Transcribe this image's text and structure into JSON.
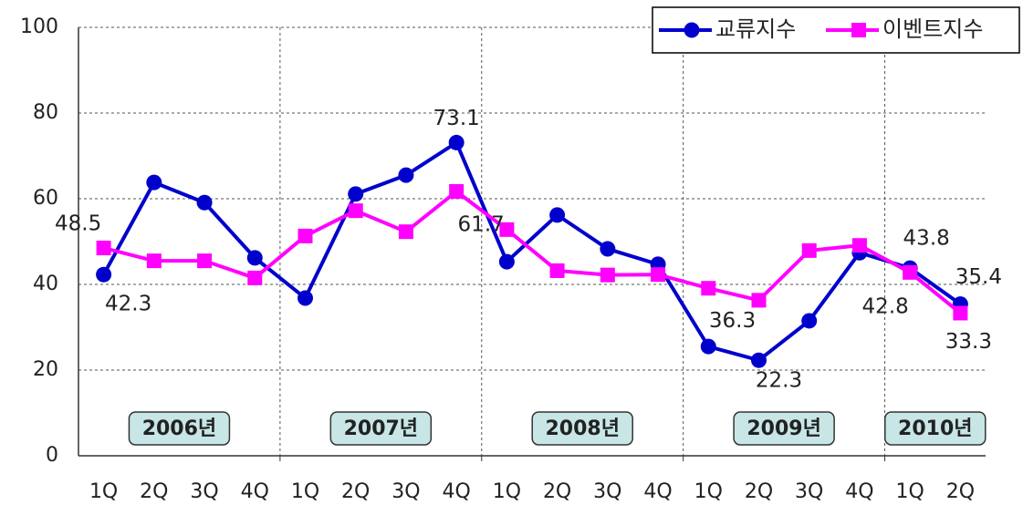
{
  "chart_data": {
    "type": "line",
    "categories": [
      "1Q",
      "2Q",
      "3Q",
      "4Q",
      "1Q",
      "2Q",
      "3Q",
      "4Q",
      "1Q",
      "2Q",
      "3Q",
      "4Q",
      "1Q",
      "2Q",
      "3Q",
      "4Q",
      "1Q",
      "2Q"
    ],
    "group_labels": [
      "2006년",
      "2007년",
      "2008년",
      "2009년",
      "2010년"
    ],
    "ylim": [
      0,
      100
    ],
    "yticks": [
      0,
      20,
      40,
      60,
      80,
      100
    ],
    "grid": true,
    "legend": "top-right",
    "series": [
      {
        "name": "교류지수",
        "color": "#0000cc",
        "marker": "circle",
        "values": [
          42.3,
          63.8,
          59.1,
          46.2,
          36.8,
          61.1,
          65.5,
          73.1,
          45.3,
          56.2,
          48.3,
          44.7,
          25.5,
          22.3,
          31.5,
          47.4,
          43.8,
          35.4
        ],
        "value_labels": [
          "42.3",
          null,
          null,
          null,
          null,
          null,
          null,
          "73.1",
          null,
          null,
          null,
          null,
          null,
          "22.3",
          null,
          null,
          "43.8",
          "35.4"
        ]
      },
      {
        "name": "이벤트지수",
        "color": "#ff00ff",
        "marker": "square",
        "values": [
          48.5,
          45.5,
          45.5,
          41.5,
          51.3,
          57.2,
          52.3,
          61.7,
          52.8,
          43.2,
          42.2,
          42.3,
          39.1,
          36.3,
          47.9,
          49.1,
          42.8,
          33.3
        ],
        "value_labels": [
          "48.5",
          null,
          null,
          null,
          null,
          null,
          null,
          "61.7",
          null,
          null,
          null,
          null,
          null,
          "36.3",
          null,
          null,
          "42.8",
          "33.3"
        ]
      }
    ]
  }
}
